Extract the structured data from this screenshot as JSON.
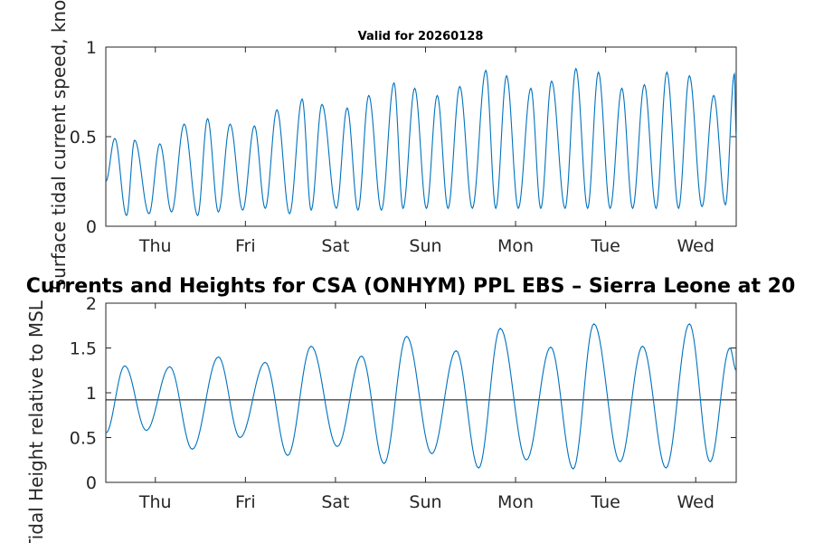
{
  "chart_data": [
    {
      "type": "line",
      "title": "Valid for 20260128",
      "ylabel": "Surface tidal current speed, knots",
      "xlabel": "",
      "ylim": [
        0,
        1
      ],
      "yticks": [
        0,
        0.5,
        1
      ],
      "ytick_labels": [
        "0",
        "0.5",
        "1"
      ],
      "xlim_days": [
        0,
        7
      ],
      "xticks_days": [
        0.55,
        1.55,
        2.55,
        3.55,
        4.55,
        5.55,
        6.55
      ],
      "xtick_labels": [
        "Thu",
        "Fri",
        "Sat",
        "Sun",
        "Mon",
        "Tue",
        "Wed"
      ],
      "line_color": "#0072BD",
      "series": [
        {
          "name": "current speed",
          "peaks_x": [
            0.1,
            0.32,
            0.6,
            0.87,
            1.13,
            1.38,
            1.65,
            1.9,
            2.18,
            2.4,
            2.68,
            2.92,
            3.2,
            3.43,
            3.68,
            3.93,
            4.22,
            4.45,
            4.72,
            4.95,
            5.22,
            5.47,
            5.73,
            5.98,
            6.23,
            6.48,
            6.75,
            6.98
          ],
          "peaks_y": [
            0.49,
            0.48,
            0.46,
            0.57,
            0.6,
            0.57,
            0.56,
            0.65,
            0.71,
            0.68,
            0.66,
            0.73,
            0.8,
            0.77,
            0.73,
            0.78,
            0.87,
            0.84,
            0.77,
            0.81,
            0.88,
            0.86,
            0.77,
            0.79,
            0.86,
            0.84,
            0.73,
            0.85
          ],
          "troughs_x": [
            0.23,
            0.48,
            0.73,
            1.02,
            1.25,
            1.52,
            1.77,
            2.04,
            2.28,
            2.56,
            2.8,
            3.06,
            3.3,
            3.56,
            3.8,
            4.07,
            4.33,
            4.58,
            4.83,
            5.1,
            5.35,
            5.6,
            5.85,
            6.11,
            6.36,
            6.62,
            6.88
          ],
          "troughs_y": [
            0.06,
            0.07,
            0.08,
            0.06,
            0.08,
            0.09,
            0.1,
            0.07,
            0.09,
            0.1,
            0.09,
            0.09,
            0.1,
            0.1,
            0.1,
            0.1,
            0.1,
            0.1,
            0.1,
            0.1,
            0.1,
            0.1,
            0.1,
            0.1,
            0.1,
            0.11,
            0.12
          ],
          "start_y": 0.25,
          "end_y": 0.5
        }
      ]
    },
    {
      "type": "line",
      "title": "Currents and Heights for CSA (ONHYM) PPL EBS  – Sierra Leone at 20",
      "ylabel": "Tidal Height relative to MSL",
      "xlabel": "",
      "ylim": [
        0,
        2
      ],
      "yticks": [
        0,
        0.5,
        1,
        1.5,
        2
      ],
      "ytick_labels": [
        "0",
        "0.5",
        "1",
        "1.5",
        "2"
      ],
      "xlim_days": [
        0,
        7
      ],
      "xticks_days": [
        0.55,
        1.55,
        2.55,
        3.55,
        4.55,
        5.55,
        6.55
      ],
      "xtick_labels": [
        "Thu",
        "Fri",
        "Sat",
        "Sun",
        "Mon",
        "Tue",
        "Wed"
      ],
      "line_color": "#0072BD",
      "reference_line": {
        "y": 0.92,
        "color": "#000000"
      },
      "series": [
        {
          "name": "tidal height",
          "start_y": 0.55,
          "extrema_x": [
            0.21,
            0.45,
            0.71,
            0.96,
            1.25,
            1.49,
            1.77,
            2.02,
            2.28,
            2.57,
            2.84,
            3.09,
            3.34,
            3.62,
            3.89,
            4.14,
            4.38,
            4.67,
            4.94,
            5.19,
            5.42,
            5.71,
            5.96,
            6.22,
            6.48,
            6.71,
            6.93
          ],
          "extrema_y": [
            1.3,
            0.58,
            1.29,
            0.37,
            1.4,
            0.5,
            1.34,
            0.3,
            1.52,
            0.4,
            1.41,
            0.21,
            1.63,
            0.32,
            1.47,
            0.16,
            1.72,
            0.25,
            1.51,
            0.15,
            1.77,
            0.23,
            1.52,
            0.16,
            1.77,
            0.23,
            1.5
          ],
          "end_y": 1.25
        }
      ]
    }
  ]
}
